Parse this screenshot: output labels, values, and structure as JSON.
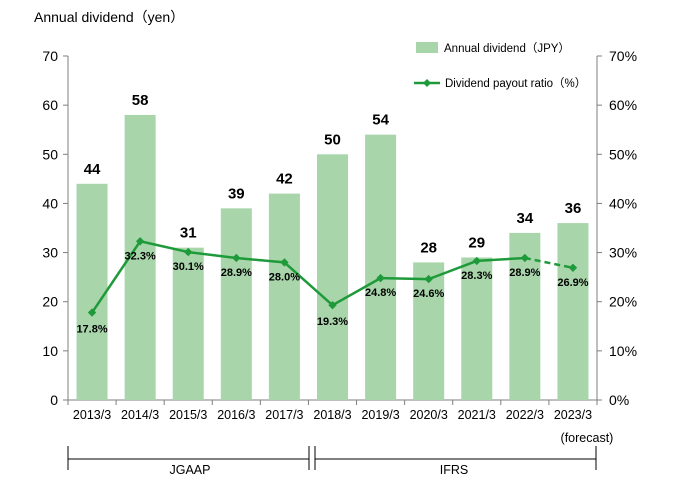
{
  "chart_data": {
    "type": "bar",
    "ylabel": "Annual dividend（yen）",
    "categories": [
      "2013/3",
      "2014/3",
      "2015/3",
      "2016/3",
      "2017/3",
      "2018/3",
      "2019/3",
      "2020/3",
      "2021/3",
      "2022/3",
      "2023/3"
    ],
    "ylim": [
      0,
      70
    ],
    "y_ticks": [
      0,
      10,
      20,
      30,
      40,
      50,
      60,
      70
    ],
    "y2lim": [
      0,
      70
    ],
    "y2_ticks": [
      "0%",
      "10%",
      "20%",
      "30%",
      "40%",
      "50%",
      "60%",
      "70%"
    ],
    "grid": false,
    "legend_position": "top-right",
    "colors": {
      "bar": "#a8d5aa",
      "line": "#1e9a3a"
    },
    "series": [
      {
        "name": "Annual dividend（JPY）",
        "type": "bar",
        "values": [
          44,
          58,
          31,
          39,
          42,
          50,
          54,
          28,
          29,
          34,
          36
        ],
        "labels": [
          "44",
          "58",
          "31",
          "39",
          "42",
          "50",
          "54",
          "28",
          "29",
          "34",
          "36"
        ]
      },
      {
        "name": "Dividend payout ratio（%）",
        "type": "line",
        "axis": "right",
        "values": [
          17.8,
          32.3,
          30.1,
          28.9,
          28.0,
          19.3,
          24.8,
          24.6,
          28.3,
          28.9,
          26.9
        ],
        "labels": [
          "17.8%",
          "32.3%",
          "30.1%",
          "28.9%",
          "28.0%",
          "19.3%",
          "24.8%",
          "24.6%",
          "28.3%",
          "28.9%",
          "26.9%"
        ],
        "dashed_from_index": 9
      }
    ],
    "annotations": {
      "forecast": "(forecast)",
      "standards": [
        {
          "label": "JGAAP",
          "from": 0,
          "to": 4
        },
        {
          "label": "IFRS",
          "from": 5,
          "to": 10
        }
      ]
    }
  }
}
